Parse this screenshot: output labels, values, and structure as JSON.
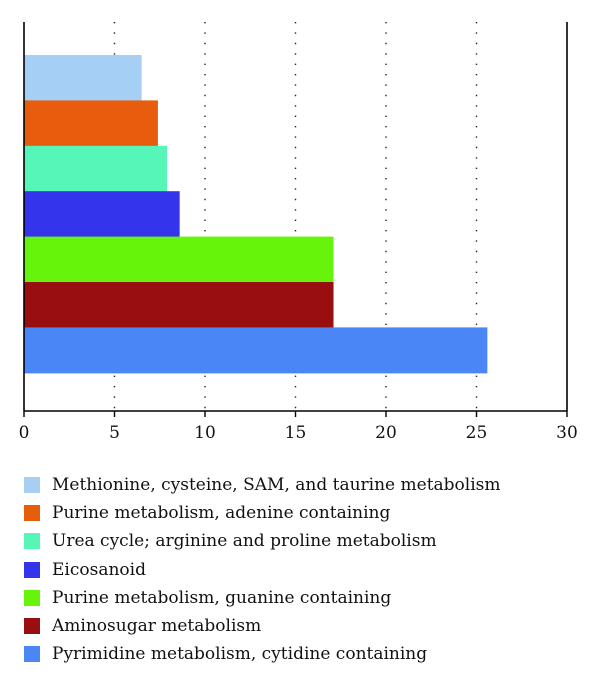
{
  "chart_data": {
    "type": "bar",
    "orientation": "horizontal",
    "categories": [
      "Methionine, cysteine, SAM, and taurine metabolism",
      "Purine metabolism, adenine containing",
      "Urea cycle; arginine and proline metabolism",
      "Eicosanoid",
      "Purine metabolism, guanine containing",
      "Aminosugar metabolism",
      "Pyrimidine metabolism, cytidine containing"
    ],
    "values": [
      6.5,
      7.4,
      7.9,
      8.6,
      17.1,
      17.1,
      25.6
    ],
    "colors": [
      "#a6cff5",
      "#e85c0e",
      "#56f5b8",
      "#3434ec",
      "#66f50a",
      "#990f0f",
      "#4a86f5"
    ],
    "xlim": [
      0,
      30
    ],
    "xticks": [
      0,
      5,
      10,
      15,
      20,
      25,
      30
    ],
    "xtick_labels": [
      "0",
      "5",
      "10",
      "15",
      "20",
      "25",
      "30"
    ],
    "grid": "vertical dotted",
    "legend_position": "bottom",
    "title": "",
    "xlabel": "",
    "ylabel": ""
  }
}
